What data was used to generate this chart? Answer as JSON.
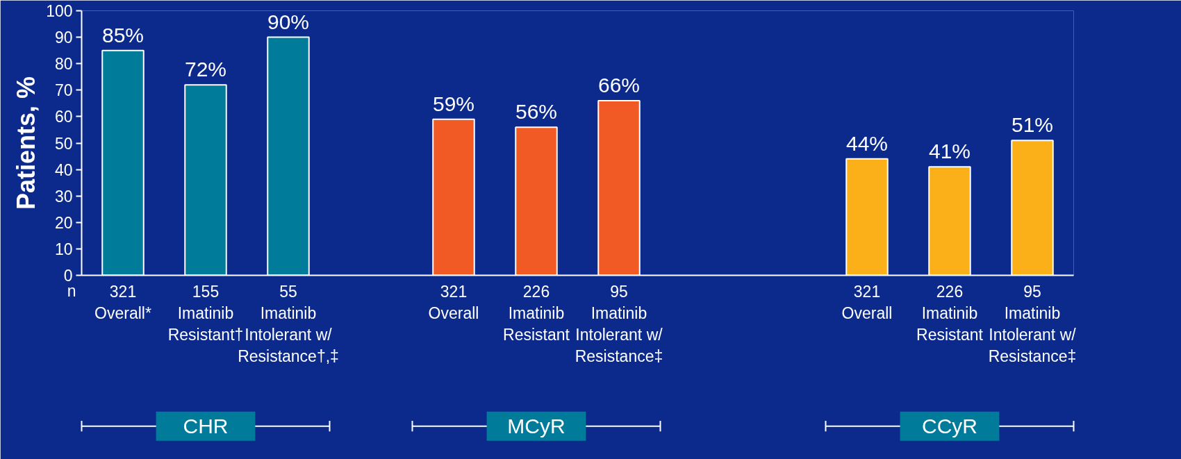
{
  "chart_data": {
    "type": "bar",
    "ylabel": "Patients, %",
    "categories": [
      "321\nOverall*",
      "155\nImatinib\nResistant†",
      "55\nImatinib\nIntolerant w/\nResistance†,‡",
      null,
      "321\nOverall",
      "226\nImatinib\nResistant",
      "95\nImatinib\nIntolerant w/\nResistance‡",
      null,
      null,
      "321\nOverall",
      "226\nImatinib\nResistant",
      "95\nImatinib\nIntolerant w/\nResistance‡"
    ],
    "values": [
      85,
      72,
      90,
      null,
      59,
      56,
      66,
      null,
      null,
      44,
      41,
      51
    ],
    "colors": [
      "#007b9a",
      "#007b9a",
      "#007b9a",
      null,
      "#f15a24",
      "#f15a24",
      "#f15a24",
      null,
      null,
      "#fbb01a",
      "#fbb01a",
      "#fbb01a"
    ],
    "ylim": [
      0,
      100
    ],
    "yticks": [
      0,
      10,
      20,
      30,
      40,
      50,
      60,
      70,
      80,
      90,
      100
    ],
    "value_labels": [
      "85%",
      "72%",
      "90%",
      null,
      "59%",
      "56%",
      "66%",
      null,
      null,
      "44%",
      "41%",
      "51%"
    ],
    "grid": false,
    "annotations": [
      "n",
      "CHR",
      "MCyR",
      "CCyR"
    ]
  }
}
